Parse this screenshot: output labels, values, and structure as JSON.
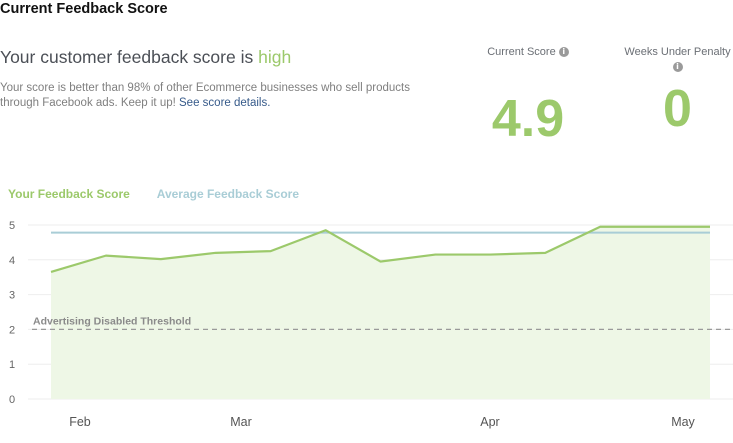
{
  "page": {
    "title": "Current Feedback Score"
  },
  "summary": {
    "headline_prefix": "Your customer feedback score is ",
    "headline_level": "high",
    "description": "Your score is better than 98% of other Ecommerce businesses who sell products through Facebook ads. Keep it up! ",
    "details_link": "See score details."
  },
  "metrics": {
    "current_score_label": "Current Score",
    "current_score_value": "4.9",
    "weeks_penalty_label": "Weeks Under Penalty",
    "weeks_penalty_value": "0",
    "info_icon_glyph": "i"
  },
  "colors": {
    "feedback_series": "#9cc96b",
    "average_series": "#a9cdd6",
    "threshold": "#9a9a9a",
    "area_fill": "#eef7e6"
  },
  "chart_data": {
    "type": "line",
    "x_labels": [
      "Feb",
      "Mar",
      "Apr",
      "May"
    ],
    "y_ticks": [
      0,
      1,
      2,
      3,
      4,
      5
    ],
    "ylim": [
      0,
      5
    ],
    "series": [
      {
        "name": "Your Feedback Score",
        "values": [
          3.65,
          4.12,
          4.02,
          4.2,
          4.25,
          4.85,
          3.95,
          4.15,
          4.15,
          4.2,
          4.95,
          4.95,
          4.95
        ]
      },
      {
        "name": "Average Feedback Score",
        "values": [
          4.78,
          4.78,
          4.78,
          4.78,
          4.78,
          4.78,
          4.78,
          4.78,
          4.78,
          4.78,
          4.78,
          4.78,
          4.78
        ]
      }
    ],
    "threshold": {
      "label": "Advertising Disabled Threshold",
      "value": 2
    }
  }
}
